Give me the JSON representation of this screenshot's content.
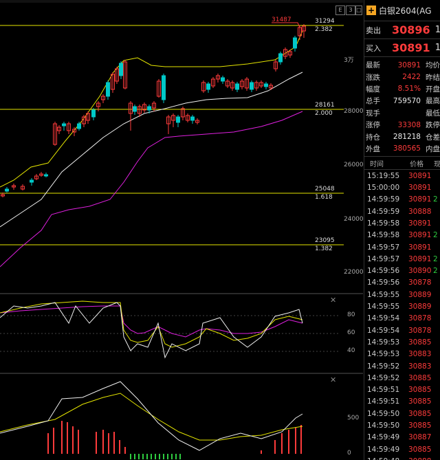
{
  "panel": {
    "title": "白银2604(AG",
    "ask_label": "卖出",
    "ask_value": "30896",
    "ask_trail": "1",
    "bid_label": "买入",
    "bid_value": "30891",
    "bid_trail": "1",
    "quote": [
      {
        "l": "最新",
        "v": "30891",
        "vc": "red",
        "r": "均价"
      },
      {
        "l": "涨跌",
        "v": "2422",
        "vc": "red",
        "r": "昨结"
      },
      {
        "l": "幅度",
        "v": "8.51%",
        "vc": "red",
        "r": "开盘"
      },
      {
        "l": "总手",
        "v": "759570",
        "vc": "white",
        "r": "最高"
      },
      {
        "l": "现手",
        "v": "",
        "vc": "white",
        "r": "最低"
      },
      {
        "l": "涨停",
        "v": "33308",
        "vc": "red",
        "r": "跌停"
      },
      {
        "l": "持仓",
        "v": "281218",
        "vc": "white",
        "r": "仓差"
      },
      {
        "l": "外盘",
        "v": "380565",
        "vc": "red",
        "r": "内盘"
      }
    ],
    "ticks_header": {
      "time": "时间",
      "price": "价格",
      "vol": "现"
    },
    "ticks": [
      {
        "t": "15:19:55",
        "p": "30891",
        "v": ""
      },
      {
        "t": "15:00:00",
        "p": "30891",
        "v": ""
      },
      {
        "t": "14:59:59",
        "p": "30891",
        "v": "2"
      },
      {
        "t": "14:59:59",
        "p": "30888",
        "v": ""
      },
      {
        "t": "14:59:58",
        "p": "30891",
        "v": ""
      },
      {
        "t": "14:59:58",
        "p": "30891",
        "v": "2"
      },
      {
        "t": "14:59:57",
        "p": "30891",
        "v": ""
      },
      {
        "t": "14:59:57",
        "p": "30891",
        "v": "2"
      },
      {
        "t": "14:59:56",
        "p": "30890",
        "v": "2"
      },
      {
        "t": "14:59:56",
        "p": "30878",
        "v": ""
      },
      {
        "t": "14:59:55",
        "p": "30889",
        "v": ""
      },
      {
        "t": "14:59:55",
        "p": "30889",
        "v": ""
      },
      {
        "t": "14:59:54",
        "p": "30878",
        "v": ""
      },
      {
        "t": "14:59:54",
        "p": "30878",
        "v": ""
      },
      {
        "t": "14:59:53",
        "p": "30885",
        "v": ""
      },
      {
        "t": "14:59:53",
        "p": "30883",
        "v": ""
      },
      {
        "t": "14:59:52",
        "p": "30883",
        "v": ""
      },
      {
        "t": "14:59:52",
        "p": "30885",
        "v": ""
      },
      {
        "t": "14:59:51",
        "p": "30885",
        "v": ""
      },
      {
        "t": "14:59:51",
        "p": "30885",
        "v": ""
      },
      {
        "t": "14:59:50",
        "p": "30885",
        "v": ""
      },
      {
        "t": "14:59:50",
        "p": "30885",
        "v": ""
      },
      {
        "t": "14:59:49",
        "p": "30887",
        "v": ""
      },
      {
        "t": "14:59:49",
        "p": "30885",
        "v": ""
      },
      {
        "t": "14:59:48",
        "p": "30888",
        "v": ""
      }
    ]
  },
  "toolbar": {
    "btn1": "E",
    "btn2": "3",
    "btn3": "□"
  },
  "colors": {
    "up": "#ff3b3b",
    "down": "#00c8c8",
    "yellow": "#e6e600",
    "white": "#f0f0f0",
    "magenta": "#e020e0",
    "fib": "#e6e600"
  },
  "chart": {
    "price_axis": [
      "3万",
      "28000",
      "26000",
      "24000",
      "22000"
    ],
    "fib_levels": [
      {
        "price": "31294",
        "ratio": "2.382"
      },
      {
        "price": "28161",
        "ratio": "2.000"
      },
      {
        "price": "25048",
        "ratio": "1.618"
      },
      {
        "price": "23095",
        "ratio": "1.382"
      }
    ],
    "high_label": "31487",
    "kdj_axis": [
      "80",
      "60",
      "40"
    ],
    "macd_axis": [
      "500",
      "0"
    ]
  },
  "chart_data": {
    "type": "line",
    "note_series": "candlestick price with bands",
    "price_axis_ticks": [
      30000,
      28000,
      26000,
      24000,
      22000
    ],
    "fib_lines": [
      31294,
      28161,
      25048,
      23095
    ],
    "fib_ratios": [
      "2.382",
      "2.000",
      "1.618",
      "1.382"
    ],
    "high": 31487
  }
}
